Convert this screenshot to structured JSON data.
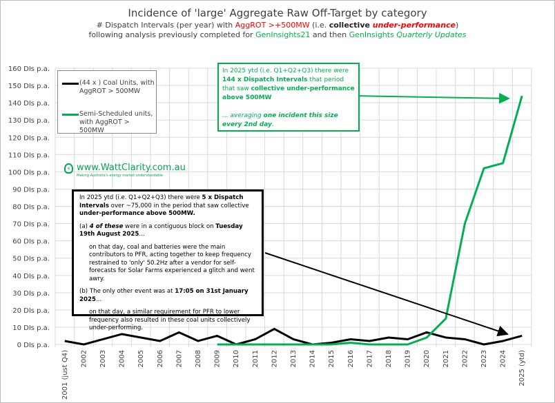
{
  "title": {
    "line1": "Incidence of 'large' Aggregate Raw Off-Target by category",
    "line2_a": "# Dispatch Intervals (per year) with ",
    "line2_b": "AggROT >+500MW",
    "line2_c": " (i.e. ",
    "line2_d": "collective ",
    "line2_e": "under-performance",
    "line2_f": ")",
    "line3_a": "following analysis previously completed for ",
    "line3_b": "GenInsights21",
    "line3_c": " and then ",
    "line3_d": "GenInsights ",
    "line3_e": "Quarterly Updates"
  },
  "logo": {
    "text": "www.WattClarity.com.au",
    "tagline": "Making Australia's energy market understandable"
  },
  "green_annotation": {
    "a": "In 2025 ytd (i.e. Q1+Q2+Q3) there were ",
    "b": "144 x Dispatch Intervals",
    "c": " that period that saw ",
    "d": "collective under-performance above 500MW",
    "e": " ... averaging ",
    "f": "one incident this size every 2nd day",
    "g": "."
  },
  "black_annotation": {
    "p1a": "In 2025 ytd (i.e. Q1+Q2+Q3) there were ",
    "p1b": "5 x Dispatch Intervals",
    "p1c": " over ~75,000 in the period that saw collective ",
    "p1d": "under-performance above 500MW.",
    "p2a": "(a)  ",
    "p2b": "4 of these",
    "p2c": " were in a contiguous block on ",
    "p2d": "Tuesday 19th August 2025",
    "p2e": "...",
    "p3": "on that day, coal and batteries were the main contributors to PFR, acting together to keep frequency restrained to 'only' 50.2Hz after a vendor for self-forecasts for Solar Farms experienced a glitch and went awry.",
    "p4a": "(b)  The only other event was at ",
    "p4b": "17:05 on 31st January 2025",
    "p4c": "...",
    "p5": "on that day, a similar requirement for PFR to lower frequency also resulted in these coal units collectively under-performing."
  },
  "chart_data": {
    "type": "line",
    "title": "Incidence of 'large' Aggregate Raw Off-Target by category",
    "categories": [
      "2001 (just Q4)",
      "2002",
      "2003",
      "2004",
      "2005",
      "2006",
      "2007",
      "2008",
      "2009",
      "2010",
      "2011",
      "2012",
      "2013",
      "2014",
      "2015",
      "2016",
      "2017",
      "2018",
      "2019",
      "2020",
      "2021",
      "2022",
      "2023",
      "2024",
      "2025 (ytd)"
    ],
    "ylim": [
      0,
      160
    ],
    "yticks": [
      "0 DIs p.a.",
      "10 DIs p.a.",
      "20 DIs p.a.",
      "30 DIs p.a.",
      "40 DIs p.a.",
      "50 DIs p.a.",
      "60 DIs p.a.",
      "70 DIs p.a.",
      "80 DIs p.a.",
      "90 DIs p.a.",
      "100 DIs p.a.",
      "110 DIs p.a.",
      "120 DIs p.a.",
      "130 DIs p.a.",
      "140 DIs p.a.",
      "150 DIs p.a.",
      "160 DIs p.a."
    ],
    "grid": true,
    "legend_placement": "top-left",
    "series": [
      {
        "name": "(44 x ) Coal Units, with AggROT > 500MW",
        "color": "#000000",
        "values": [
          2,
          0,
          3,
          6,
          4,
          2,
          7,
          2,
          5,
          0,
          3,
          9,
          3,
          0,
          1,
          3,
          2,
          4,
          3,
          7,
          4,
          3,
          0,
          2,
          5
        ]
      },
      {
        "name": "Semi-Scheduled units, with AggROT > 500MW",
        "color": "#00b050",
        "values": [
          null,
          null,
          null,
          null,
          null,
          null,
          null,
          null,
          0,
          0,
          0,
          0,
          0,
          0,
          0,
          1,
          0,
          0,
          0,
          4,
          15,
          70,
          102,
          105,
          144
        ]
      }
    ]
  }
}
